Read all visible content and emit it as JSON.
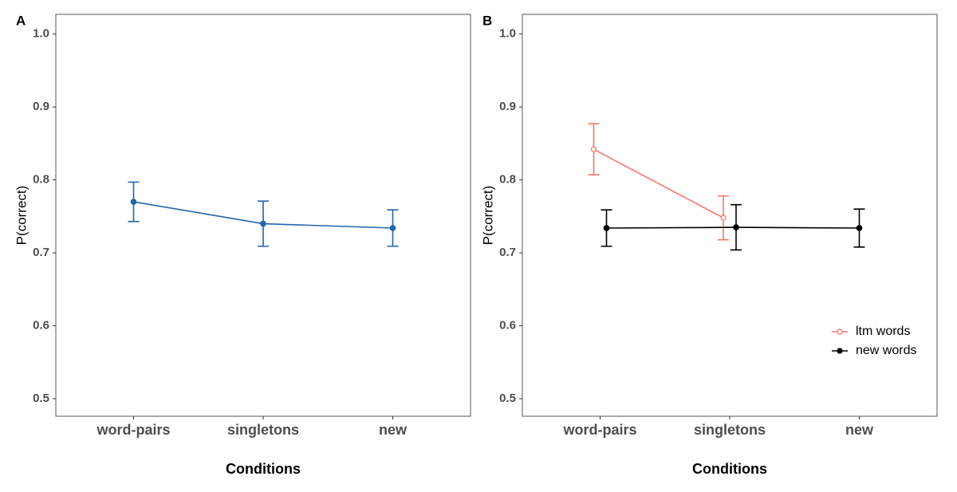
{
  "chart_data": [
    {
      "type": "line",
      "tag": "A",
      "x_label": "Conditions",
      "y_label": "P(correct)",
      "categories": [
        "word-pairs",
        "singletons",
        "new"
      ],
      "series": [
        {
          "color": "#2166ac",
          "marker": "circle",
          "values": [
            0.77,
            0.74,
            0.734
          ],
          "errors": [
            0.027,
            0.031,
            0.025
          ]
        }
      ],
      "ylim": [
        0.476,
        1.027
      ],
      "yticks": [
        0.5,
        0.6,
        0.7,
        0.8,
        0.9,
        {
          "value": 1,
          "label": "1.0"
        }
      ],
      "grid": false
    },
    {
      "type": "line",
      "tag": "B",
      "x_label": "Conditions",
      "y_label": "P(correct)",
      "categories": [
        "word-pairs",
        "singletons",
        "new"
      ],
      "series": [
        {
          "name": "ltm words",
          "color": "#f8766d",
          "marker": "open-circle",
          "values": [
            0.842,
            0.748,
            null
          ],
          "errors": [
            0.035,
            0.03,
            null
          ]
        },
        {
          "name": "new words",
          "color": "#000000",
          "marker": "circle",
          "values": [
            0.734,
            0.735,
            0.734
          ],
          "errors": [
            0.025,
            0.031,
            0.026
          ]
        }
      ],
      "ylim": [
        0.476,
        1.027
      ],
      "yticks": [
        0.5,
        0.6,
        0.7,
        0.8,
        0.9,
        {
          "value": 1,
          "label": "1.0"
        }
      ],
      "grid": false,
      "legend": "bottom-right"
    }
  ]
}
